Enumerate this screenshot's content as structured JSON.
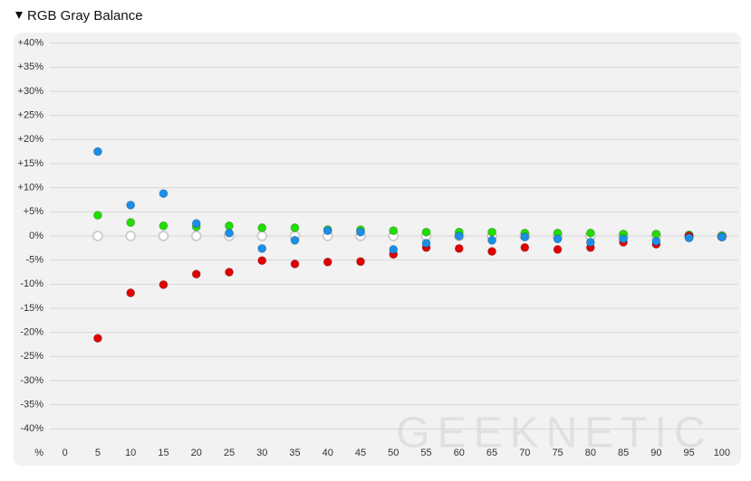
{
  "chart_data": {
    "type": "scatter",
    "title": "RGB Gray Balance",
    "x_label": "%",
    "watermark": "GEEKNETIC",
    "x": [
      5,
      10,
      15,
      20,
      25,
      30,
      35,
      40,
      45,
      50,
      55,
      60,
      65,
      70,
      75,
      80,
      85,
      90,
      95,
      100
    ],
    "series": [
      {
        "color": "#cccccc",
        "hollow": true,
        "values": [
          0,
          0,
          0,
          0,
          0,
          0,
          0,
          0,
          0,
          0,
          0,
          0,
          0,
          0,
          0,
          0,
          0,
          0,
          0,
          0
        ]
      },
      {
        "color": "#22dd00",
        "values": [
          4.3,
          2.8,
          2.1,
          1.9,
          2.1,
          1.7,
          1.7,
          1.3,
          1.3,
          1.1,
          0.8,
          0.8,
          0.8,
          0.6,
          0.6,
          0.6,
          0.4,
          0.4,
          0.2,
          0
        ]
      },
      {
        "color": "#e00000",
        "values": [
          -21.2,
          -11.8,
          -10.1,
          -7.9,
          -7.5,
          -5.1,
          -5.8,
          -5.4,
          -5.3,
          -3.8,
          -2.4,
          -2.6,
          -3.2,
          -2.4,
          -2.8,
          -2.4,
          -1.3,
          -1.7,
          0,
          -0.2
        ]
      },
      {
        "color": "#1a8fe8",
        "values": [
          17.5,
          6.4,
          8.8,
          2.6,
          0.6,
          -2.6,
          -0.9,
          1.1,
          0.8,
          -2.8,
          -1.5,
          0,
          -0.9,
          -0.2,
          -0.6,
          -1.3,
          -0.6,
          -1.1,
          -0.4,
          -0.2
        ]
      }
    ],
    "xlim": [
      -2.3,
      102.5
    ],
    "xticks": [
      0,
      5,
      10,
      15,
      20,
      25,
      30,
      35,
      40,
      45,
      50,
      55,
      60,
      65,
      70,
      75,
      80,
      85,
      90,
      95,
      100
    ],
    "ylim": [
      -42,
      42
    ],
    "yticks": [
      {
        "value": 40,
        "label": "+40%"
      },
      {
        "value": 35,
        "label": "+35%"
      },
      {
        "value": 30,
        "label": "+30%"
      },
      {
        "value": 25,
        "label": "+25%"
      },
      {
        "value": 20,
        "label": "+20%"
      },
      {
        "value": 15,
        "label": "+15%"
      },
      {
        "value": 10,
        "label": "+10%"
      },
      {
        "value": 5,
        "label": "+5%"
      },
      {
        "value": 0,
        "label": "0%"
      },
      {
        "value": -5,
        "label": "-5%"
      },
      {
        "value": -10,
        "label": "-10%"
      },
      {
        "value": -15,
        "label": "-15%"
      },
      {
        "value": -20,
        "label": "-20%"
      },
      {
        "value": -25,
        "label": "-25%"
      },
      {
        "value": -30,
        "label": "-30%"
      },
      {
        "value": -35,
        "label": "-35%"
      },
      {
        "value": -40,
        "label": "-40%"
      }
    ],
    "grid": true
  }
}
